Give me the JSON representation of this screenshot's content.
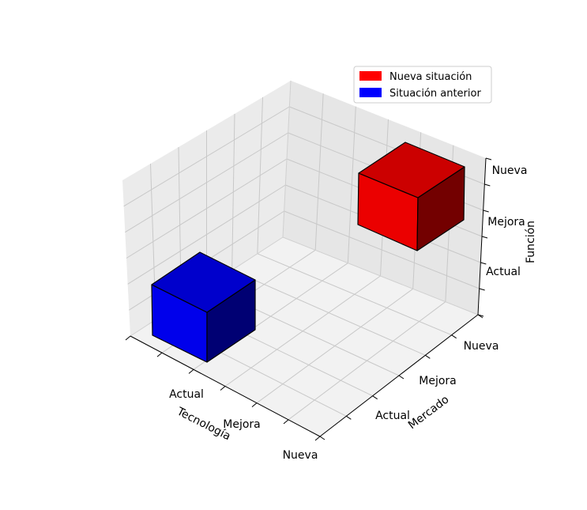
{
  "chart_data": {
    "type": "bar3d",
    "title": "",
    "x_axis": {
      "label": "Tecnología",
      "ticks": [
        "Actual",
        "Mejora",
        "Nueva"
      ]
    },
    "y_axis": {
      "label": "Mercado",
      "ticks": [
        "Actual",
        "Mejora",
        "Nueva"
      ]
    },
    "z_axis": {
      "label": "Función",
      "ticks": [
        "Actual",
        "Mejora",
        "Nueva"
      ]
    },
    "grid": true,
    "legend_position": "top-right",
    "series": [
      {
        "name": "Nueva situación",
        "color": "#ff0000",
        "cube": {
          "x": "Nueva",
          "y": "Nueva",
          "z": "Nueva"
        }
      },
      {
        "name": "Situación anterior",
        "color": "#0000ff",
        "cube": {
          "x": "Actual",
          "y": "Actual",
          "z": "Actual"
        }
      }
    ]
  }
}
